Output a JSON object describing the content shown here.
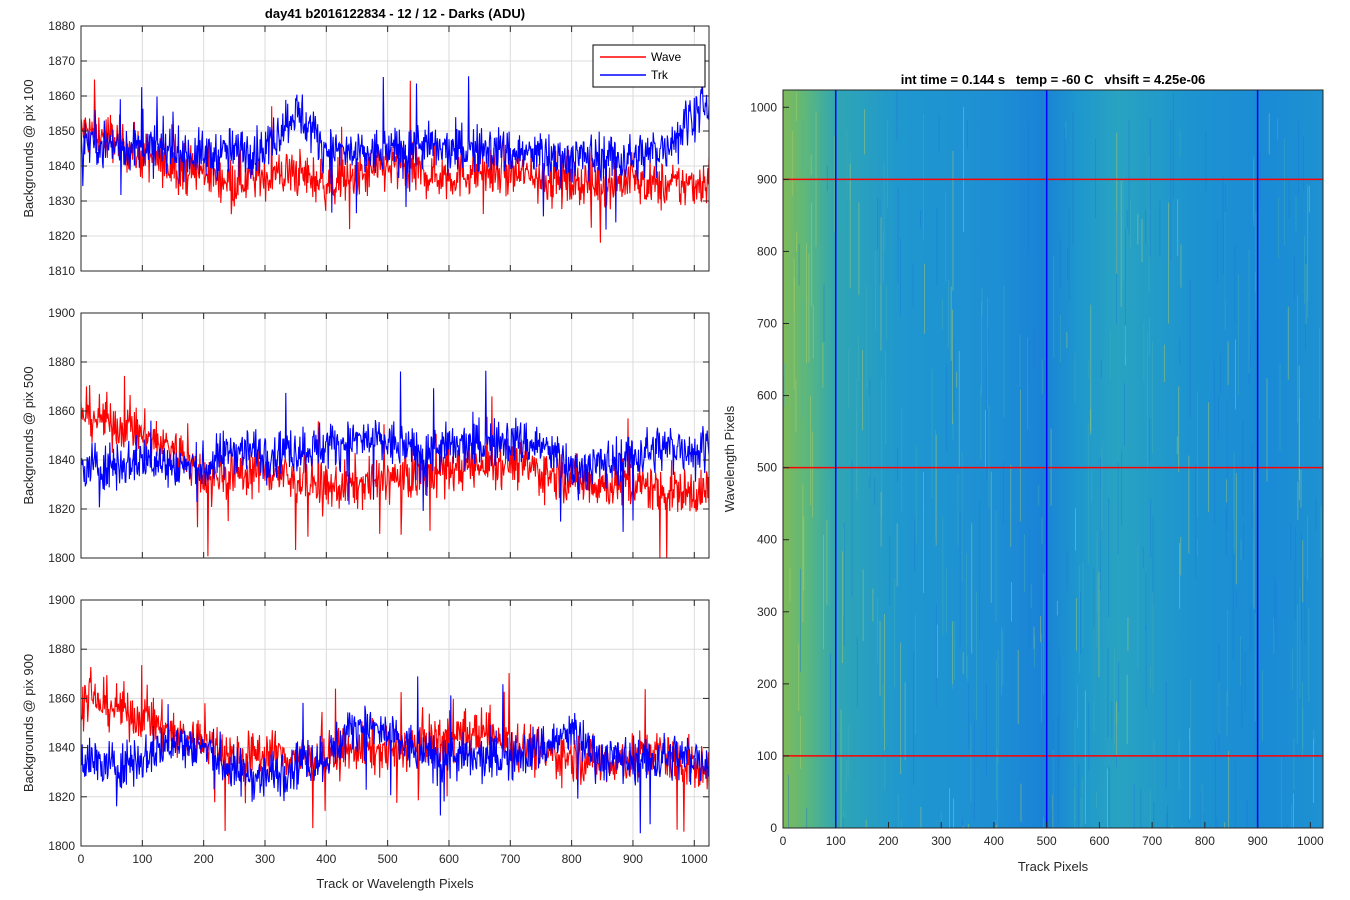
{
  "figure": {
    "title": "day41 b2016122834 - 12 / 12 - Darks (ADU)",
    "shared_xlabel": "Track or Wavelength Pixels"
  },
  "chart_data": [
    {
      "type": "line",
      "ylabel": "Backgrounds @ pix 100",
      "xlim": [
        0,
        1024
      ],
      "ylim": [
        1810,
        1880
      ],
      "xticks": [
        0,
        100,
        200,
        300,
        400,
        500,
        600,
        700,
        800,
        900,
        1000
      ],
      "yticks": [
        1810,
        1820,
        1830,
        1840,
        1850,
        1860,
        1870,
        1880
      ],
      "grid": true,
      "legend": "top-right",
      "series": [
        {
          "name": "Wave",
          "color": "#ff0000",
          "x": [
            0,
            50,
            100,
            150,
            200,
            250,
            300,
            350,
            400,
            450,
            500,
            550,
            600,
            650,
            700,
            750,
            800,
            850,
            900,
            950,
            1000,
            1024
          ],
          "values": [
            1850,
            1848,
            1843,
            1840,
            1838,
            1836,
            1837,
            1838,
            1835,
            1836,
            1840,
            1838,
            1837,
            1839,
            1838,
            1837,
            1836,
            1835,
            1836,
            1834,
            1835,
            1836
          ]
        },
        {
          "name": "Trk",
          "color": "#0000ff",
          "x": [
            0,
            50,
            100,
            150,
            200,
            250,
            300,
            350,
            400,
            450,
            500,
            550,
            600,
            650,
            700,
            750,
            800,
            850,
            900,
            950,
            1000,
            1024
          ],
          "values": [
            1848,
            1846,
            1845,
            1844,
            1843,
            1844,
            1845,
            1856,
            1845,
            1843,
            1844,
            1846,
            1844,
            1845,
            1844,
            1843,
            1842,
            1843,
            1842,
            1845,
            1856,
            1855
          ]
        }
      ]
    },
    {
      "type": "line",
      "ylabel": "Backgrounds @ pix 500",
      "xlim": [
        0,
        1024
      ],
      "ylim": [
        1800,
        1900
      ],
      "xticks": [
        0,
        100,
        200,
        300,
        400,
        500,
        600,
        700,
        800,
        900,
        1000
      ],
      "yticks": [
        1800,
        1820,
        1840,
        1860,
        1880,
        1900
      ],
      "grid": true,
      "series": [
        {
          "name": "Wave",
          "color": "#ff0000",
          "x": [
            0,
            50,
            100,
            150,
            200,
            250,
            300,
            350,
            400,
            450,
            500,
            550,
            600,
            650,
            700,
            750,
            800,
            850,
            900,
            950,
            1000,
            1024
          ],
          "values": [
            1860,
            1855,
            1850,
            1845,
            1832,
            1835,
            1836,
            1832,
            1828,
            1830,
            1832,
            1834,
            1836,
            1838,
            1840,
            1835,
            1832,
            1830,
            1830,
            1828,
            1826,
            1828
          ]
        },
        {
          "name": "Trk",
          "color": "#0000ff",
          "x": [
            0,
            50,
            100,
            150,
            200,
            250,
            300,
            350,
            400,
            450,
            500,
            550,
            600,
            650,
            700,
            750,
            800,
            850,
            900,
            950,
            1000,
            1024
          ],
          "values": [
            1836,
            1838,
            1840,
            1838,
            1836,
            1845,
            1843,
            1844,
            1846,
            1848,
            1847,
            1843,
            1845,
            1846,
            1848,
            1846,
            1836,
            1838,
            1842,
            1845,
            1845,
            1846
          ]
        }
      ]
    },
    {
      "type": "line",
      "ylabel": "Backgrounds @ pix 900",
      "xlabel": "Track or Wavelength Pixels",
      "xlim": [
        0,
        1024
      ],
      "ylim": [
        1800,
        1900
      ],
      "xticks": [
        0,
        100,
        200,
        300,
        400,
        500,
        600,
        700,
        800,
        900,
        1000
      ],
      "yticks": [
        1800,
        1820,
        1840,
        1860,
        1880,
        1900
      ],
      "grid": true,
      "series": [
        {
          "name": "Wave",
          "color": "#ff0000",
          "x": [
            0,
            50,
            100,
            150,
            200,
            250,
            300,
            350,
            400,
            450,
            500,
            550,
            600,
            650,
            700,
            750,
            800,
            850,
            900,
            950,
            1000,
            1024
          ],
          "values": [
            1860,
            1857,
            1852,
            1846,
            1842,
            1836,
            1838,
            1836,
            1836,
            1840,
            1838,
            1842,
            1844,
            1846,
            1843,
            1838,
            1836,
            1834,
            1836,
            1838,
            1832,
            1830
          ]
        },
        {
          "name": "Trk",
          "color": "#0000ff",
          "x": [
            0,
            50,
            100,
            150,
            200,
            250,
            300,
            350,
            400,
            450,
            500,
            550,
            600,
            650,
            700,
            750,
            800,
            850,
            900,
            950,
            1000,
            1024
          ],
          "values": [
            1836,
            1832,
            1836,
            1842,
            1840,
            1830,
            1828,
            1834,
            1836,
            1850,
            1845,
            1838,
            1836,
            1835,
            1836,
            1840,
            1846,
            1836,
            1835,
            1836,
            1836,
            1834
          ]
        }
      ]
    },
    {
      "type": "heatmap",
      "title": "int time = 0.144 s   temp = -60 C   vhsift = 4.25e-06",
      "xlabel": "Track Pixels",
      "ylabel": "Wavelength Pixels",
      "xlim": [
        0,
        1024
      ],
      "ylim": [
        0,
        1024
      ],
      "xticks": [
        0,
        100,
        200,
        300,
        400,
        500,
        600,
        700,
        800,
        900,
        1000
      ],
      "yticks": [
        0,
        100,
        200,
        300,
        400,
        500,
        600,
        700,
        800,
        900,
        1000
      ],
      "colormap": "parula",
      "vertical_lines": {
        "color": "#0000ff",
        "x": [
          100,
          500,
          900
        ]
      },
      "horizontal_lines": {
        "color": "#ff0000",
        "y": [
          100,
          500,
          900
        ]
      }
    }
  ]
}
